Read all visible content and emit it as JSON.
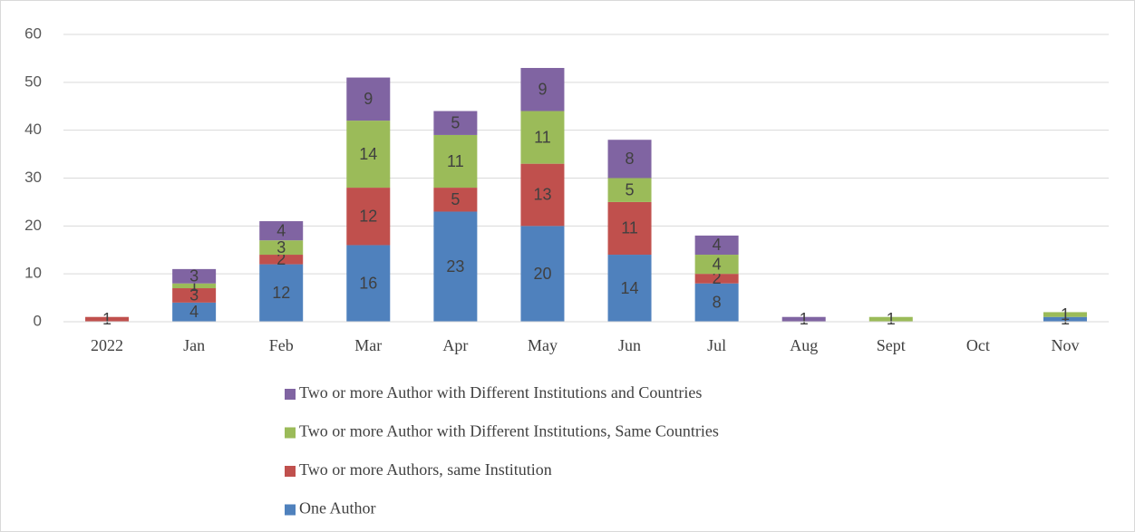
{
  "chart_data": {
    "type": "bar",
    "stacked": true,
    "categories": [
      "2022",
      "Jan",
      "Feb",
      "Mar",
      "Apr",
      "May",
      "Jun",
      "Jul",
      "Aug",
      "Sept",
      "Oct",
      "Nov"
    ],
    "series": [
      {
        "name": "One Author",
        "color": "#4f81bd",
        "values": [
          0,
          4,
          12,
          16,
          23,
          20,
          14,
          8,
          0,
          0,
          0,
          1
        ]
      },
      {
        "name": "Two or more Authors, same Institution",
        "color": "#c0504d",
        "values": [
          1,
          3,
          2,
          12,
          5,
          13,
          11,
          2,
          0,
          0,
          0,
          0
        ]
      },
      {
        "name": "Two or more Author with Different Institutions, Same Countries",
        "color": "#9bbb59",
        "values": [
          0,
          1,
          3,
          14,
          11,
          11,
          5,
          4,
          0,
          1,
          0,
          1
        ]
      },
      {
        "name": "Two or more Author with Different Institutions and Countries",
        "color": "#8064a2",
        "values": [
          0,
          3,
          4,
          9,
          5,
          9,
          8,
          4,
          1,
          0,
          0,
          0
        ]
      }
    ],
    "ylim": [
      0,
      60
    ],
    "yticks": [
      0,
      10,
      20,
      30,
      40,
      50,
      60
    ],
    "grid": true,
    "legend": "bottom"
  }
}
